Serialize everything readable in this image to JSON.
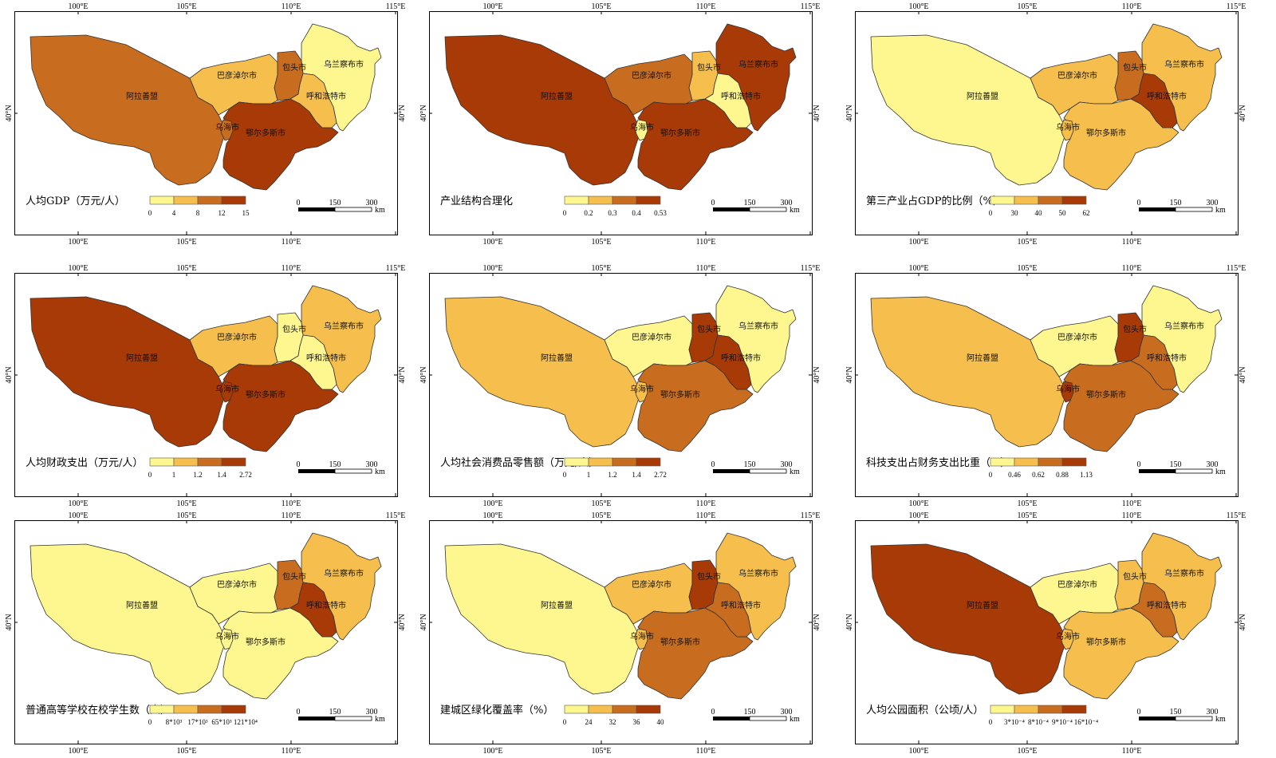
{
  "axes": {
    "lon_labels": [
      "100°E",
      "105°E",
      "110°E",
      "115°E"
    ],
    "lat_label": "40°N"
  },
  "regions": {
    "alashan": "阿拉善盟",
    "bayannur": "巴彦淖尔市",
    "baotou": "包头市",
    "ulanqab": "乌兰察布市",
    "hohhot": "呼和浩特市",
    "ordos": "鄂尔多斯市",
    "wuhai": "乌海市"
  },
  "scale_bar": {
    "ticks": [
      "0",
      "150",
      "300"
    ],
    "unit": "km"
  },
  "colors": {
    "class1": "#FEF68E",
    "class2": "#F5BE4D",
    "class3": "#C86D20",
    "class4": "#A73A06",
    "class5": "#B40E0E",
    "border": "#333333"
  },
  "maps": [
    {
      "title": "人均GDP（万元/人）",
      "legend_breaks": [
        "0",
        "4",
        "8",
        "12",
        "15"
      ],
      "classes": {
        "alashan": 3,
        "bayannur": 2,
        "baotou": 3,
        "ulanqab": 1,
        "hohhot": 2,
        "ordos": 4,
        "wuhai": 3
      }
    },
    {
      "title": "产业结构合理化",
      "legend_breaks": [
        "0",
        "0.2",
        "0.3",
        "0.4",
        "0.53"
      ],
      "classes": {
        "alashan": 4,
        "bayannur": 3,
        "baotou": 2,
        "ulanqab": 4,
        "hohhot": 1,
        "ordos": 4,
        "wuhai": 1
      }
    },
    {
      "title": "第三产业占GDP的比例（%）",
      "legend_breaks": [
        "0",
        "30",
        "40",
        "50",
        "62"
      ],
      "classes": {
        "alashan": 1,
        "bayannur": 2,
        "baotou": 3,
        "ulanqab": 2,
        "hohhot": 4,
        "ordos": 2,
        "wuhai": 2
      }
    },
    {
      "title": "人均财政支出（万元/人）",
      "legend_breaks": [
        "0",
        "1",
        "1.2",
        "1.4",
        "2.72"
      ],
      "classes": {
        "alashan": 4,
        "bayannur": 2,
        "baotou": 1,
        "ulanqab": 2,
        "hohhot": 1,
        "ordos": 4,
        "wuhai": 4
      }
    },
    {
      "title": "人均社会消费品零售额（万元/人）",
      "legend_breaks": [
        "0",
        "1",
        "1.2",
        "1.4",
        "2.72"
      ],
      "classes": {
        "alashan": 2,
        "bayannur": 1,
        "baotou": 4,
        "ulanqab": 1,
        "hohhot": 4,
        "ordos": 3,
        "wuhai": 2
      }
    },
    {
      "title": "科技支出占财务支出比重（%）",
      "legend_breaks": [
        "0",
        "0.46",
        "0.62",
        "0.88",
        "1.13"
      ],
      "classes": {
        "alashan": 2,
        "bayannur": 1,
        "baotou": 4,
        "ulanqab": 1,
        "hohhot": 3,
        "ordos": 3,
        "wuhai": 4
      }
    },
    {
      "title": "普通高等学校在校学生数（人）",
      "legend_breaks": [
        "0",
        "8*10³",
        "17*10³",
        "65*10³",
        "121*10⁴"
      ],
      "classes": {
        "alashan": 1,
        "bayannur": 1,
        "baotou": 3,
        "ulanqab": 2,
        "hohhot": 4,
        "ordos": 1,
        "wuhai": 1
      }
    },
    {
      "title": "建城区绿化覆盖率（%）",
      "legend_breaks": [
        "0",
        "24",
        "32",
        "36",
        "40"
      ],
      "classes": {
        "alashan": 1,
        "bayannur": 2,
        "baotou": 4,
        "ulanqab": 2,
        "hohhot": 3,
        "ordos": 3,
        "wuhai": 2
      }
    },
    {
      "title": "人均公园面积（公顷/人）",
      "legend_breaks": [
        "0",
        "3*10⁻⁴",
        "8*10⁻⁴",
        "9*10⁻⁴",
        "16*10⁻⁴"
      ],
      "classes": {
        "alashan": 4,
        "bayannur": 1,
        "baotou": 2,
        "ulanqab": 2,
        "hohhot": 3,
        "ordos": 2,
        "wuhai": 2
      }
    }
  ]
}
